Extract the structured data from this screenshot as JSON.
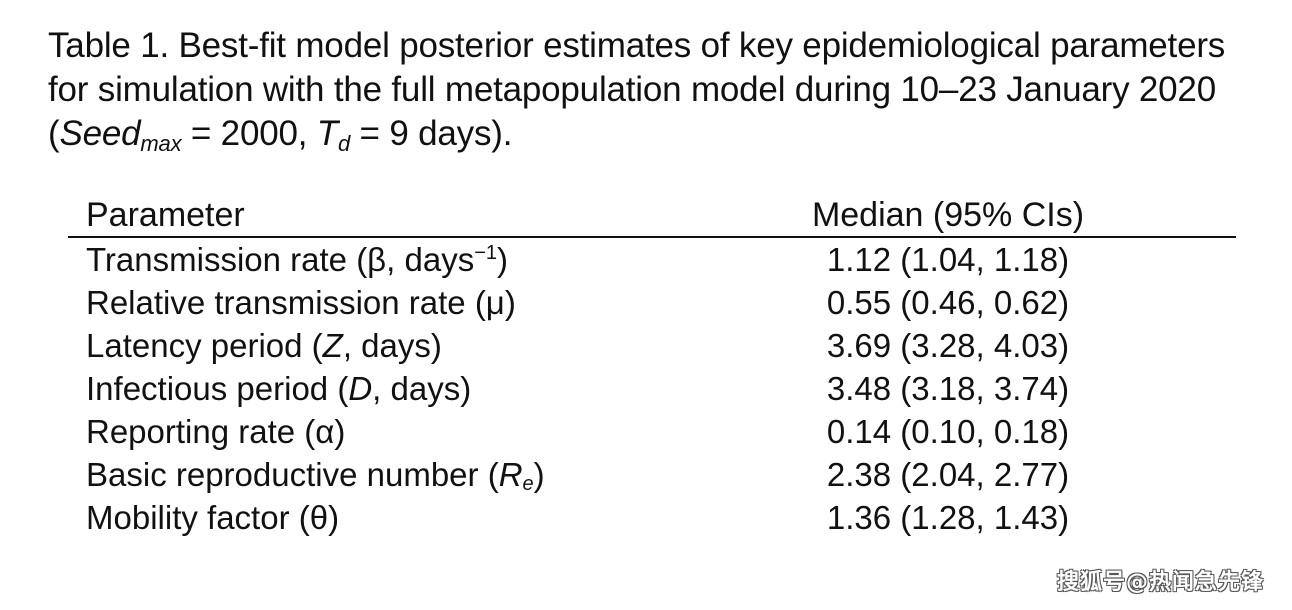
{
  "caption": {
    "prefix": "Table 1. Best-fit model posterior estimates of key epidemiological parameters for simulation with the full metapopulation model during 10–23 January 2020 (",
    "seed_var": "Seed",
    "seed_sub": "max",
    "seed_val": " = 2000,  ",
    "td_var": "T",
    "td_sub": "d",
    "td_val": " = 9 days)."
  },
  "table": {
    "headers": {
      "parameter": "Parameter",
      "median": "Median (95% CIs)"
    },
    "rows": [
      {
        "pre": "Transmission rate (β, days",
        "sup": "−1",
        "post": ")",
        "value": "1.12 (1.04, 1.18)"
      },
      {
        "pre": "Relative transmission rate (μ)",
        "value": "0.55 (0.46, 0.62)"
      },
      {
        "pre": "Latency period (",
        "ital": "Z",
        "post": ", days)",
        "value": "3.69 (3.28, 4.03)"
      },
      {
        "pre": "Infectious period (",
        "ital": "D",
        "post": ", days)",
        "value": "3.48 (3.18, 3.74)"
      },
      {
        "pre": "Reporting rate (α)",
        "value": "0.14 (0.10, 0.18)"
      },
      {
        "pre": "Basic reproductive number (",
        "ital": "R",
        "sub": "e",
        "post": ")",
        "value": "2.38 (2.04, 2.77)"
      },
      {
        "pre": "Mobility factor (θ)",
        "value": "1.36 (1.28, 1.43)"
      }
    ]
  },
  "watermark": "搜狐号@热闻急先锋"
}
